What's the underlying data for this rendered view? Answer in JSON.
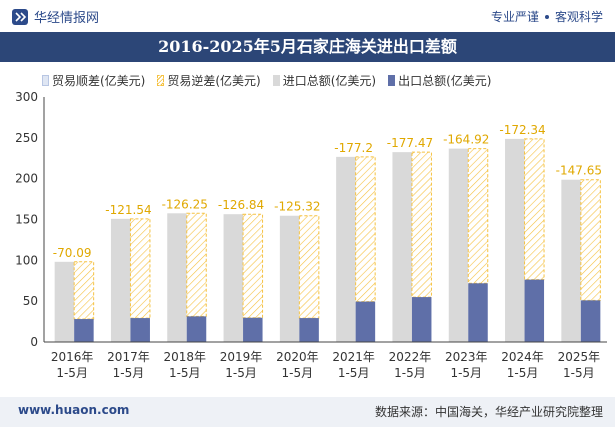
{
  "header": {
    "brand": "华经情报网",
    "motto_left": "专业严谨",
    "motto_right": "客观科学"
  },
  "title": "2016-2025年5月石家庄海关进出口差额",
  "footer": {
    "website": "www.huaon.com",
    "source": "数据来源：中国海关，华经产业研究院整理"
  },
  "colors": {
    "header_bg": "#2c4677",
    "imports": "#d9d9d9",
    "exports": "#5f6fa8",
    "deficit": "#f5c242",
    "surplus": "#dfe6f3",
    "brand": "#2c4a8a"
  },
  "chart_data": {
    "type": "bar",
    "categories": [
      "2016年\n1-5月",
      "2017年\n1-5月",
      "2018年\n1-5月",
      "2019年\n1-5月",
      "2020年\n1-5月",
      "2021年\n1-5月",
      "2022年\n1-5月",
      "2023年\n1-5月",
      "2024年\n1-5月",
      "2025年\n1-5月"
    ],
    "ylim": [
      0,
      300
    ],
    "yticks": [
      0,
      50,
      100,
      150,
      200,
      250,
      300
    ],
    "grid": false,
    "legend_position": "top",
    "series": [
      {
        "name": "贸易顺差(亿美元)",
        "values": [
          null,
          null,
          null,
          null,
          null,
          null,
          null,
          null,
          null,
          null
        ]
      },
      {
        "name": "贸易逆差(亿美元)",
        "values": [
          -70.09,
          -121.54,
          -126.25,
          -126.84,
          -125.32,
          -177.2,
          -177.47,
          -164.92,
          -172.34,
          -147.65
        ]
      },
      {
        "name": "进口总额(亿美元)",
        "values": [
          98.2,
          150.8,
          157.6,
          156.5,
          154.6,
          226.7,
          232.5,
          236.8,
          248.7,
          198.7
        ]
      },
      {
        "name": "出口总额(亿美元)",
        "values": [
          28.1,
          29.3,
          31.4,
          29.7,
          29.3,
          49.5,
          55.0,
          71.9,
          76.4,
          51.0
        ]
      }
    ],
    "data_labels": [
      "-70.09",
      "-121.54",
      "-126.25",
      "-126.84",
      "-125.32",
      "-177.2",
      "-177.47",
      "-164.92",
      "-172.34",
      "-147.65"
    ]
  }
}
